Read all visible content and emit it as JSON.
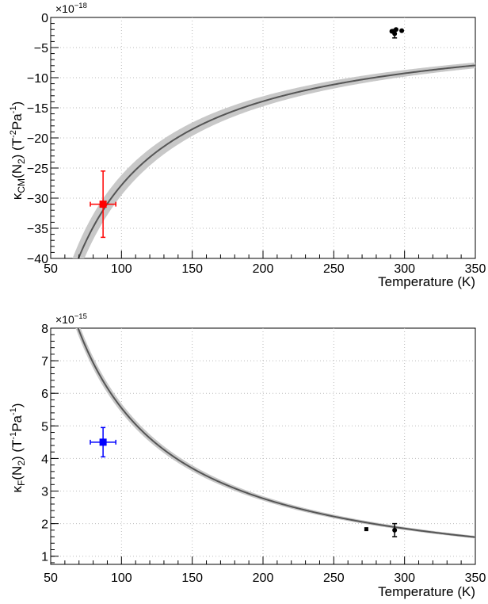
{
  "chart_data": [
    {
      "type": "scatter",
      "xlabel": "Temperature (K)",
      "ylabel": {
        "kappa": "κ",
        "sub1": "CM",
        "mid": "(N",
        "sub2": "2",
        "end": ")  (T",
        "exp1": "-2",
        "unit2": "Pa",
        "exp2": "-1",
        "close": ")"
      },
      "exponent": {
        "base": "×10",
        "power": "−18"
      },
      "xlim": [
        50,
        350
      ],
      "ylim": [
        -40,
        0
      ],
      "xticks": [
        50,
        100,
        150,
        200,
        250,
        300,
        350
      ],
      "yticks": [
        0,
        -5,
        -10,
        -15,
        -20,
        -25,
        -30,
        -35,
        -40
      ],
      "grid": true,
      "curve": {
        "type": "1/T",
        "coef": -2784,
        "band_fraction": 0.06,
        "color": "#555555",
        "band_color": "#c8c8c8"
      },
      "series": [
        {
          "color": "#ff0000",
          "marker": "square",
          "points": [
            {
              "x": 87,
              "y": -31,
              "xerr": 9,
              "yerr": 5.5
            }
          ]
        },
        {
          "color": "#000000",
          "marker": "circle",
          "points": [
            {
              "x": 291,
              "y": -2.3,
              "xerr": 0,
              "yerr": 0
            },
            {
              "x": 293,
              "y": -2.7,
              "xerr": 0,
              "yerr": 0.7
            },
            {
              "x": 294,
              "y": -2.0,
              "xerr": 0,
              "yerr": 0
            },
            {
              "x": 298,
              "y": -2.2,
              "xerr": 0,
              "yerr": 0
            }
          ]
        }
      ]
    },
    {
      "type": "scatter",
      "xlabel": "Temperature (K)",
      "ylabel": {
        "kappa": "κ",
        "sub1": "F",
        "mid": "(N",
        "sub2": "2",
        "end": ")  (T",
        "exp1": "-1",
        "unit2": "Pa",
        "exp2": "-1",
        "close": ")"
      },
      "exponent": {
        "base": "×10",
        "power": "−15"
      },
      "xlim": [
        50,
        350
      ],
      "ylim": [
        0.75,
        8
      ],
      "xticks": [
        50,
        100,
        150,
        200,
        250,
        300,
        350
      ],
      "yticks": [
        1,
        2,
        3,
        4,
        5,
        6,
        7,
        8
      ],
      "grid": true,
      "curve": {
        "type": "1/T",
        "coef": 555,
        "band_fraction": 0.025,
        "color": "#555555",
        "band_color": "#c8c8c8"
      },
      "series": [
        {
          "color": "#0000ff",
          "marker": "square",
          "points": [
            {
              "x": 87,
              "y": 4.5,
              "xerr": 9,
              "yerr": 0.45
            }
          ]
        },
        {
          "color": "#000000",
          "marker": "square",
          "points": [
            {
              "x": 273,
              "y": 1.83,
              "xerr": 0,
              "yerr": 0
            }
          ]
        },
        {
          "color": "#000000",
          "marker": "circle",
          "points": [
            {
              "x": 293,
              "y": 1.8,
              "xerr": 0,
              "yerr": 0.2
            }
          ]
        }
      ]
    }
  ]
}
